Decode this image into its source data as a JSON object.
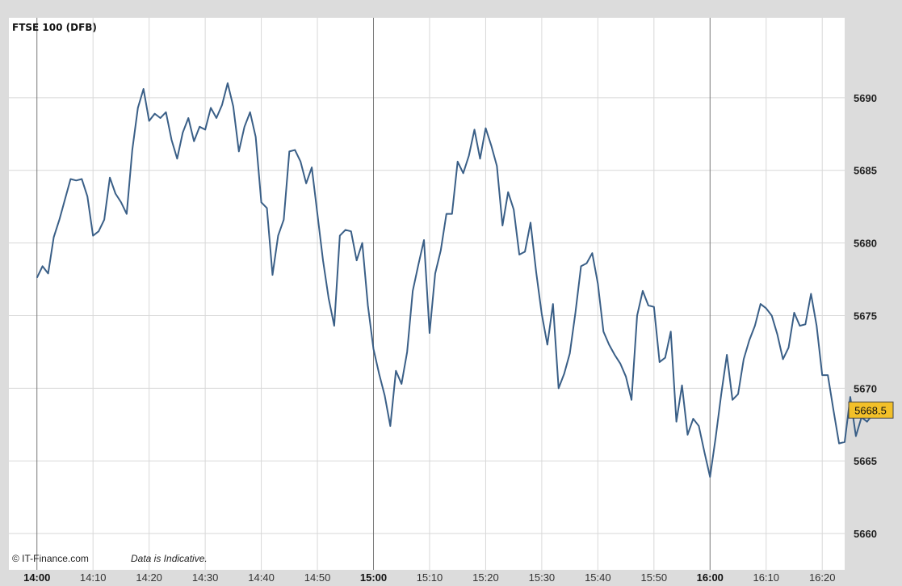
{
  "chart_data": {
    "type": "line",
    "title": "FTSE 100 (DFB)",
    "credit": "© IT-Finance.com",
    "notice": "Data is Indicative.",
    "last_value_label": "5668.5",
    "xlabel": "",
    "ylabel": "",
    "ylim": [
      5657.5,
      5695.5
    ],
    "y_ticks": [
      5660,
      5665,
      5670,
      5675,
      5680,
      5685,
      5690
    ],
    "y_tick_labels": [
      "5660",
      "5665",
      "5670",
      "5675",
      "5680",
      "5685",
      "5690"
    ],
    "x_range_minutes": [
      -5,
      144
    ],
    "x_ticks": [
      {
        "label": "14:00",
        "major": true
      },
      {
        "label": "14:10",
        "major": false
      },
      {
        "label": "14:20",
        "major": false
      },
      {
        "label": "14:30",
        "major": false
      },
      {
        "label": "14:40",
        "major": false
      },
      {
        "label": "14:50",
        "major": false
      },
      {
        "label": "15:00",
        "major": true
      },
      {
        "label": "15:10",
        "major": false
      },
      {
        "label": "15:20",
        "major": false
      },
      {
        "label": "15:30",
        "major": false
      },
      {
        "label": "15:40",
        "major": false
      },
      {
        "label": "15:50",
        "major": false
      },
      {
        "label": "16:00",
        "major": true
      },
      {
        "label": "16:10",
        "major": false
      },
      {
        "label": "16:20",
        "major": false
      }
    ],
    "grid": true,
    "colors": {
      "line": "#3a5f87",
      "grid": "#d8d8d8",
      "major_grid": "#7a7a7a",
      "last_badge": "#f2c029",
      "plot_bg": "#ffffff",
      "frame": "#dcdcdc"
    },
    "series": [
      {
        "values": [
          5677.6,
          5678.4,
          5677.9,
          5680.4,
          5681.6,
          5683.0,
          5684.4,
          5684.3,
          5684.4,
          5683.2,
          5680.5,
          5680.8,
          5681.6,
          5684.5,
          5683.4,
          5682.8,
          5682.0,
          5686.4,
          5689.3,
          5690.6,
          5688.4,
          5688.9,
          5688.6,
          5689.0,
          5687.1,
          5685.8,
          5687.6,
          5688.6,
          5687.0,
          5688.0,
          5687.8,
          5689.3,
          5688.6,
          5689.5,
          5691.0,
          5689.4,
          5686.3,
          5688.0,
          5689.0,
          5687.3,
          5682.8,
          5682.4,
          5677.8,
          5680.5,
          5681.6,
          5686.3,
          5686.4,
          5685.6,
          5684.1,
          5685.2,
          5682.0,
          5678.8,
          5676.2,
          5674.3,
          5680.5,
          5680.9,
          5680.8,
          5678.8,
          5680.0,
          5675.7,
          5672.7,
          5671.0,
          5669.5,
          5667.4,
          5671.2,
          5670.3,
          5672.5,
          5676.7,
          5678.5,
          5680.2,
          5673.8,
          5677.9,
          5679.5,
          5682.0,
          5682.0,
          5685.6,
          5684.8,
          5686.0,
          5687.8,
          5685.8,
          5687.9,
          5686.7,
          5685.3,
          5681.2,
          5683.5,
          5682.3,
          5679.2,
          5679.4,
          5681.4,
          5678.0,
          5675.1,
          5673.0,
          5675.8,
          5670.0,
          5671.0,
          5672.4,
          5675.2,
          5678.4,
          5678.6,
          5679.3,
          5677.2,
          5673.9,
          5673.0,
          5672.3,
          5671.7,
          5670.8,
          5669.2,
          5675.0,
          5676.7,
          5675.7,
          5675.6,
          5671.8,
          5672.1,
          5673.9,
          5667.7,
          5670.2,
          5666.8,
          5667.9,
          5667.4,
          5665.6,
          5663.9,
          5666.6,
          5669.6,
          5672.3,
          5669.2,
          5669.6,
          5672.0,
          5673.3,
          5674.3,
          5675.8,
          5675.5,
          5675.0,
          5673.7,
          5672.0,
          5672.8,
          5675.2,
          5674.3,
          5674.4,
          5676.5,
          5674.3,
          5670.9,
          5670.9,
          5668.5,
          5666.2,
          5666.3,
          5669.4,
          5666.7,
          5668.0,
          5667.7,
          5668.2,
          5668.5
        ]
      }
    ]
  }
}
